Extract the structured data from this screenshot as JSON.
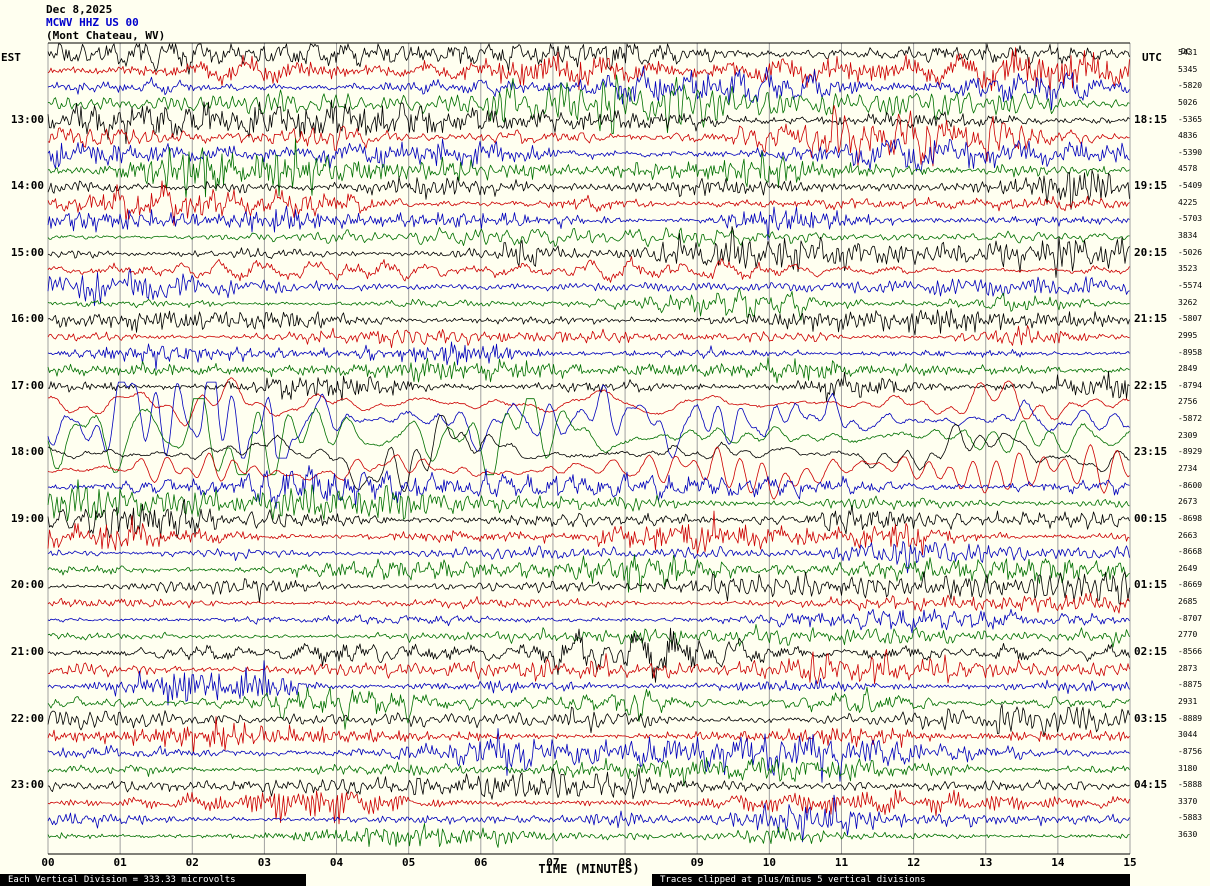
{
  "header": {
    "date": "Dec 8,2025",
    "station": "MCWV HHZ US 00",
    "location": "(Mont Chateau, WV)",
    "left_tz": "EST",
    "right_tz": "UTC",
    "dc_header": "DC"
  },
  "footer": {
    "scale_note": "Each Vertical Division =  333.33 microvolts",
    "clip_note": "Traces clipped at plus/minus 5 vertical divisions"
  },
  "colors": {
    "black": "#000000",
    "red": "#cc0000",
    "blue": "#0000bb",
    "green": "#007000",
    "grid": "#a0a0a0",
    "background": "#fffff0",
    "station_text": "#0000cc"
  },
  "chart_data": {
    "type": "line",
    "subtype": "helicorder-seismogram",
    "title": "MCWV HHZ US 00 (Mont Chateau, WV) Dec 8,2025",
    "xlabel": "TIME (MINUTES)",
    "x_ticks": [
      "00",
      "01",
      "02",
      "03",
      "04",
      "05",
      "06",
      "07",
      "08",
      "09",
      "10",
      "11",
      "12",
      "13",
      "14",
      "15"
    ],
    "x_range_minutes": [
      0,
      15
    ],
    "minutes_per_line": 15,
    "clip_divisions": 5,
    "microvolts_per_division": 333.33,
    "trace_order_colors": [
      "black",
      "red",
      "blue",
      "green"
    ],
    "traces": [
      {
        "left": "",
        "right": "",
        "dc": "5431",
        "amp": 2.4,
        "lf": false
      },
      {
        "left": "",
        "right": "",
        "dc": "5345",
        "amp": 1.9,
        "lf": false
      },
      {
        "left": "",
        "right": "",
        "dc": "-5820",
        "amp": 1.7,
        "lf": false
      },
      {
        "left": "",
        "right": "",
        "dc": "5026",
        "amp": 1.5,
        "lf": false
      },
      {
        "left": "13:00",
        "right": "18:15",
        "dc": "-5365",
        "amp": 2.0,
        "lf": false
      },
      {
        "left": "",
        "right": "",
        "dc": "4836",
        "amp": 1.7,
        "lf": false
      },
      {
        "left": "",
        "right": "",
        "dc": "-5390",
        "amp": 1.5,
        "lf": false
      },
      {
        "left": "",
        "right": "",
        "dc": "4578",
        "amp": 1.3,
        "lf": false
      },
      {
        "left": "14:00",
        "right": "19:15",
        "dc": "-5409",
        "amp": 1.4,
        "lf": false
      },
      {
        "left": "",
        "right": "",
        "dc": "4225",
        "amp": 1.2,
        "lf": false
      },
      {
        "left": "",
        "right": "",
        "dc": "-5703",
        "amp": 1.1,
        "lf": false
      },
      {
        "left": "",
        "right": "",
        "dc": "3834",
        "amp": 1.05,
        "lf": false
      },
      {
        "left": "15:00",
        "right": "20:15",
        "dc": "-5026",
        "amp": 1.25,
        "lf": false
      },
      {
        "left": "",
        "right": "",
        "dc": "3523",
        "amp": 1.1,
        "lf": false
      },
      {
        "left": "",
        "right": "",
        "dc": "-5574",
        "amp": 0.95,
        "lf": false
      },
      {
        "left": "",
        "right": "",
        "dc": "3262",
        "amp": 0.95,
        "lf": false
      },
      {
        "left": "16:00",
        "right": "21:15",
        "dc": "-5807",
        "amp": 1.05,
        "lf": false
      },
      {
        "left": "",
        "right": "",
        "dc": "2995",
        "amp": 0.95,
        "lf": false
      },
      {
        "left": "",
        "right": "",
        "dc": "-8958",
        "amp": 1.0,
        "lf": false
      },
      {
        "left": "",
        "right": "",
        "dc": "2849",
        "amp": 1.05,
        "lf": false
      },
      {
        "left": "17:00",
        "right": "22:15",
        "dc": "-8794",
        "amp": 1.35,
        "lf": false
      },
      {
        "left": "",
        "right": "",
        "dc": "2756",
        "amp": 2.6,
        "lf": true
      },
      {
        "left": "",
        "right": "",
        "dc": "-5872",
        "amp": 3.8,
        "lf": true
      },
      {
        "left": "",
        "right": "",
        "dc": "2309",
        "amp": 3.6,
        "lf": true
      },
      {
        "left": "18:00",
        "right": "23:15",
        "dc": "-8929",
        "amp": 3.2,
        "lf": true
      },
      {
        "left": "",
        "right": "",
        "dc": "2734",
        "amp": 2.3,
        "lf": true
      },
      {
        "left": "",
        "right": "",
        "dc": "-8600",
        "amp": 1.8,
        "lf": false
      },
      {
        "left": "",
        "right": "",
        "dc": "2673",
        "amp": 1.5,
        "lf": false
      },
      {
        "left": "19:00",
        "right": "00:15",
        "dc": "-8698",
        "amp": 1.7,
        "lf": false
      },
      {
        "left": "",
        "right": "",
        "dc": "2663",
        "amp": 1.25,
        "lf": false
      },
      {
        "left": "",
        "right": "",
        "dc": "-8668",
        "amp": 1.15,
        "lf": false
      },
      {
        "left": "",
        "right": "",
        "dc": "2649",
        "amp": 1.1,
        "lf": false
      },
      {
        "left": "20:00",
        "right": "01:15",
        "dc": "-8669",
        "amp": 1.3,
        "lf": false
      },
      {
        "left": "",
        "right": "",
        "dc": "2685",
        "amp": 1.15,
        "lf": false
      },
      {
        "left": "",
        "right": "",
        "dc": "-8707",
        "amp": 1.05,
        "lf": false
      },
      {
        "left": "",
        "right": "",
        "dc": "2770",
        "amp": 1.05,
        "lf": false
      },
      {
        "left": "21:00",
        "right": "02:15",
        "dc": "-8566",
        "amp": 1.55,
        "lf": false
      },
      {
        "left": "",
        "right": "",
        "dc": "2873",
        "amp": 1.65,
        "lf": false
      },
      {
        "left": "",
        "right": "",
        "dc": "-8875",
        "amp": 1.35,
        "lf": false
      },
      {
        "left": "",
        "right": "",
        "dc": "2931",
        "amp": 1.3,
        "lf": false
      },
      {
        "left": "22:00",
        "right": "03:15",
        "dc": "-8889",
        "amp": 1.5,
        "lf": false
      },
      {
        "left": "",
        "right": "",
        "dc": "3044",
        "amp": 1.25,
        "lf": false
      },
      {
        "left": "",
        "right": "",
        "dc": "-8756",
        "amp": 1.35,
        "lf": false
      },
      {
        "left": "",
        "right": "",
        "dc": "3180",
        "amp": 1.15,
        "lf": false
      },
      {
        "left": "23:00",
        "right": "04:15",
        "dc": "-5888",
        "amp": 1.35,
        "lf": false
      },
      {
        "left": "",
        "right": "",
        "dc": "3370",
        "amp": 1.15,
        "lf": false
      },
      {
        "left": "",
        "right": "",
        "dc": "-5883",
        "amp": 1.05,
        "lf": false
      },
      {
        "left": "",
        "right": "",
        "dc": "3630",
        "amp": 1.0,
        "lf": false
      }
    ]
  }
}
